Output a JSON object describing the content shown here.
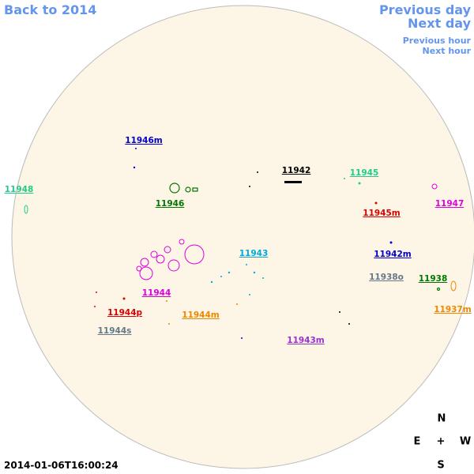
{
  "nav": {
    "back": "Back to 2014",
    "previous_day": "Previous day",
    "next_day": "Next day",
    "previous_hour": "Previous hour",
    "next_hour": "Next hour"
  },
  "regions": [
    {
      "label": "11946m",
      "color": "#0000cc"
    },
    {
      "label": "11942",
      "color": "#000000"
    },
    {
      "label": "11945",
      "color": "#22cc88"
    },
    {
      "label": "11948",
      "color": "#22cc88"
    },
    {
      "label": "11946",
      "color": "#007700"
    },
    {
      "label": "11945m",
      "color": "#dd0000"
    },
    {
      "label": "11947",
      "color": "#dd00dd"
    },
    {
      "label": "11943",
      "color": "#00aadd"
    },
    {
      "label": "11942m",
      "color": "#0000cc"
    },
    {
      "label": "11938o",
      "color": "#667788"
    },
    {
      "label": "11938",
      "color": "#007700"
    },
    {
      "label": "11944",
      "color": "#dd00dd"
    },
    {
      "label": "11944p",
      "color": "#dd0000"
    },
    {
      "label": "11944m",
      "color": "#ee8800"
    },
    {
      "label": "11937m",
      "color": "#ee8800"
    },
    {
      "label": "11944s",
      "color": "#667788"
    },
    {
      "label": "11943m",
      "color": "#9933cc"
    }
  ],
  "compass": {
    "north": "N",
    "east": "E",
    "center": "+",
    "west": "W",
    "south": "S"
  },
  "timestamp": "2014-01-06T16:00:24"
}
